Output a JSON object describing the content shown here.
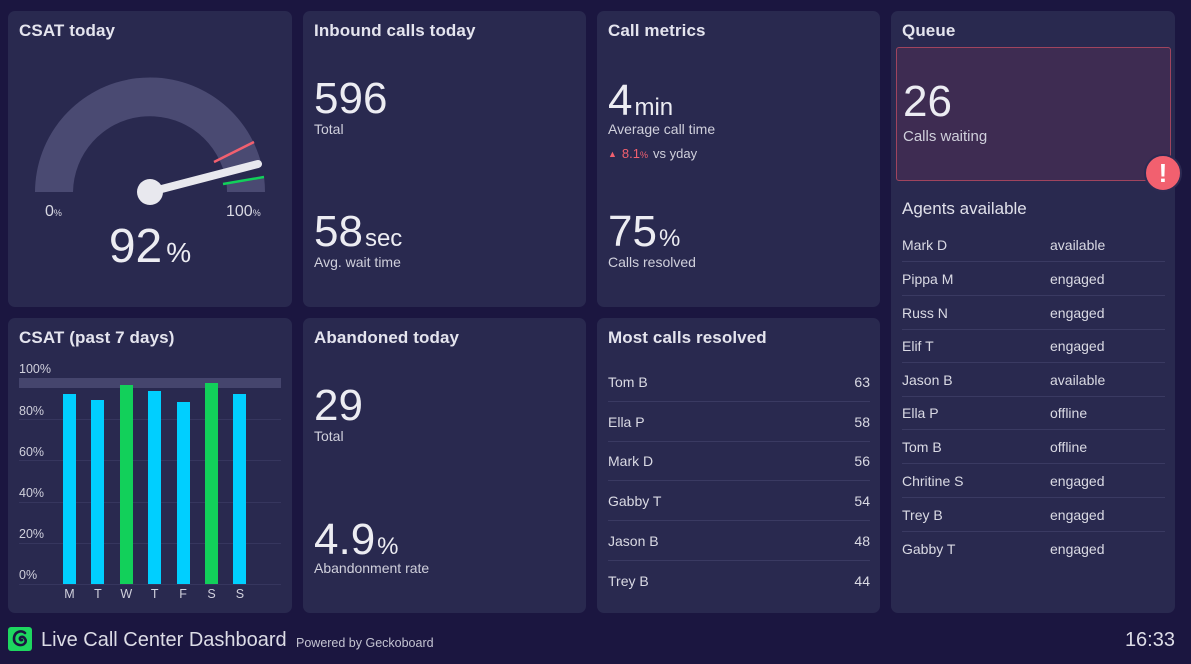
{
  "colors": {
    "background": "#1b1640",
    "panel": "#29294f",
    "bar_default": "#00cfff",
    "bar_highlight": "#12d05a",
    "alert": "#f2606f",
    "gauge_track": "#4a4a72",
    "gauge_needle": "#e8e8ee",
    "target_red": "#f2606f",
    "target_green": "#12d05a"
  },
  "csat_today": {
    "title": "CSAT today",
    "value": "92",
    "unit": "%",
    "min_label": "0",
    "max_label": "100",
    "min_unit": "%",
    "max_unit": "%",
    "value_numeric": 92,
    "red_threshold": 85,
    "green_threshold": 95
  },
  "inbound_calls": {
    "title": "Inbound calls today",
    "total_value": "596",
    "total_label": "Total",
    "wait_value": "58",
    "wait_unit": "sec",
    "wait_label": "Avg. wait time"
  },
  "call_metrics": {
    "title": "Call metrics",
    "avg_value": "4",
    "avg_unit": "min",
    "avg_label": "Average call time",
    "trend_arrow": "▲",
    "trend_value": "8.1",
    "trend_unit": "%",
    "trend_label": "vs yday",
    "resolved_value": "75",
    "resolved_unit": "%",
    "resolved_label": "Calls resolved"
  },
  "queue": {
    "title": "Queue",
    "calls_waiting_value": "26",
    "calls_waiting_label": "Calls waiting",
    "alert_icon": "!",
    "agents_heading": "Agents available",
    "agents": [
      {
        "name": "Mark D",
        "status": "available"
      },
      {
        "name": "Pippa M",
        "status": "engaged"
      },
      {
        "name": "Russ N",
        "status": "engaged"
      },
      {
        "name": "Elif T",
        "status": "engaged"
      },
      {
        "name": "Jason B",
        "status": "available"
      },
      {
        "name": "Ella P",
        "status": "offline"
      },
      {
        "name": "Tom B",
        "status": "offline"
      },
      {
        "name": "Chritine S",
        "status": "engaged"
      },
      {
        "name": "Trey B",
        "status": "engaged"
      },
      {
        "name": "Gabby T",
        "status": "engaged"
      }
    ]
  },
  "csat_7days": {
    "title": "CSAT (past 7 days)",
    "y_ticks": [
      "100%",
      "80%",
      "60%",
      "40%",
      "20%",
      "0%"
    ]
  },
  "chart_data": {
    "type": "bar",
    "title": "CSAT (past 7 days)",
    "categories": [
      "M",
      "T",
      "W",
      "T",
      "F",
      "S",
      "S"
    ],
    "values": [
      92,
      89,
      96,
      93,
      88,
      97,
      92
    ],
    "highlighted": [
      false,
      false,
      true,
      false,
      false,
      true,
      false
    ],
    "target_band": [
      95,
      100
    ],
    "xlabel": "",
    "ylabel": "",
    "ylim": [
      0,
      100
    ],
    "y_tick_labels": [
      "0%",
      "20%",
      "40%",
      "60%",
      "80%",
      "100%"
    ],
    "grid": true,
    "legend": null
  },
  "abandoned": {
    "title": "Abandoned today",
    "total_value": "29",
    "total_label": "Total",
    "rate_value": "4.9",
    "rate_unit": "%",
    "rate_label": "Abandonment rate"
  },
  "most_resolved": {
    "title": "Most calls resolved",
    "rows": [
      {
        "name": "Tom B",
        "count": "63"
      },
      {
        "name": "Ella P",
        "count": "58"
      },
      {
        "name": "Mark D",
        "count": "56"
      },
      {
        "name": "Gabby T",
        "count": "54"
      },
      {
        "name": "Jason B",
        "count": "48"
      },
      {
        "name": "Trey B",
        "count": "44"
      }
    ]
  },
  "footer": {
    "title": "Live Call Center Dashboard",
    "powered_by": "Powered by Geckoboard",
    "clock": "16:33"
  }
}
